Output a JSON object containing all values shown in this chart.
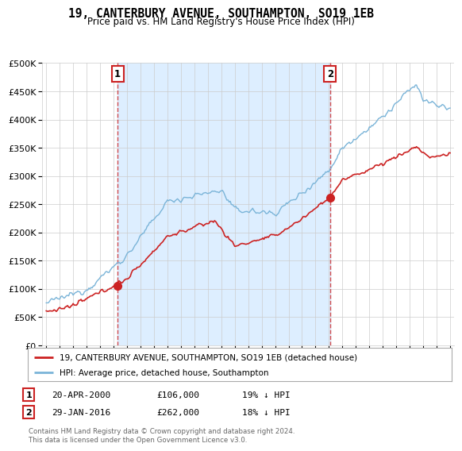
{
  "title": "19, CANTERBURY AVENUE, SOUTHAMPTON, SO19 1EB",
  "subtitle": "Price paid vs. HM Land Registry's House Price Index (HPI)",
  "ylim": [
    0,
    500000
  ],
  "yticks": [
    0,
    50000,
    100000,
    150000,
    200000,
    250000,
    300000,
    350000,
    400000,
    450000,
    500000
  ],
  "ytick_labels": [
    "£0",
    "£50K",
    "£100K",
    "£150K",
    "£200K",
    "£250K",
    "£300K",
    "£350K",
    "£400K",
    "£450K",
    "£500K"
  ],
  "hpi_color": "#7ab4d8",
  "price_color": "#cc2222",
  "shade_color": "#ddeeff",
  "sale1_date": 2000.3,
  "sale1_price": 106000,
  "sale1_label": "1",
  "sale2_date": 2016.08,
  "sale2_price": 262000,
  "sale2_label": "2",
  "legend_line1": "19, CANTERBURY AVENUE, SOUTHAMPTON, SO19 1EB (detached house)",
  "legend_line2": "HPI: Average price, detached house, Southampton",
  "note1_label": "1",
  "note1_date": "20-APR-2000",
  "note1_price": "£106,000",
  "note1_pct": "19% ↓ HPI",
  "note2_label": "2",
  "note2_date": "29-JAN-2016",
  "note2_price": "£262,000",
  "note2_pct": "18% ↓ HPI",
  "footer": "Contains HM Land Registry data © Crown copyright and database right 2024.\nThis data is licensed under the Open Government Licence v3.0.",
  "background_color": "#ffffff",
  "grid_color": "#cccccc"
}
